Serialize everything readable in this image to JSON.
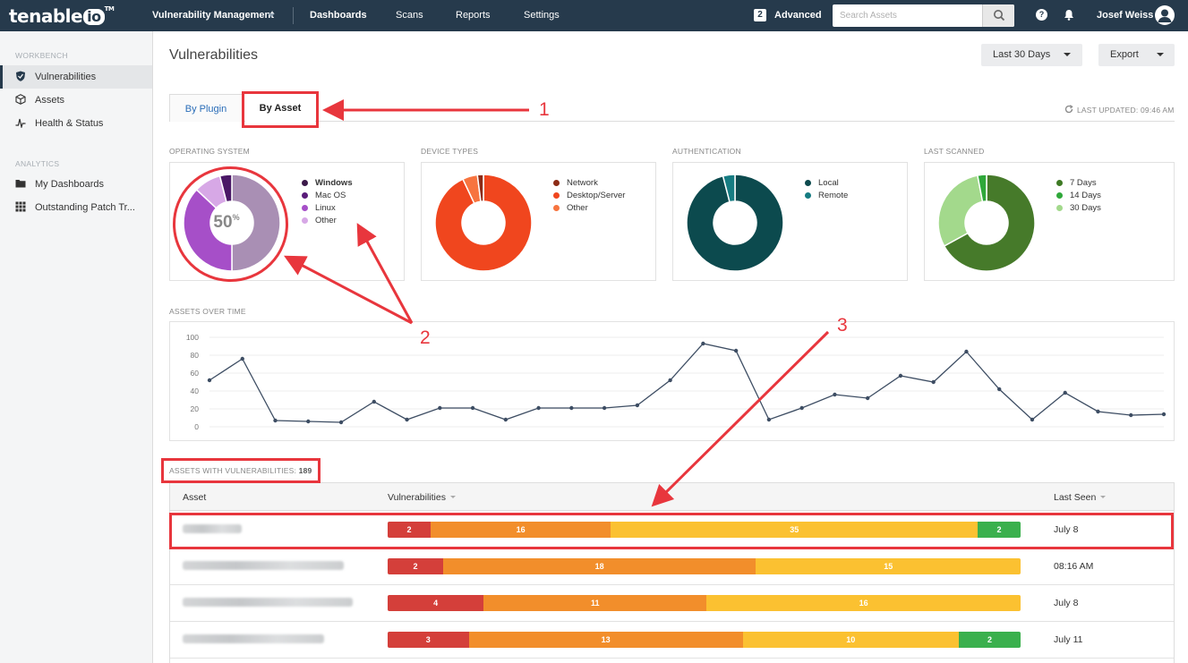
{
  "topbar": {
    "brand": "tenable",
    "brand_io": "io",
    "brand_tm": "TM",
    "app_switcher": "Vulnerability Management",
    "nav": [
      "Dashboards",
      "Scans",
      "Reports",
      "Settings"
    ],
    "advanced_count": "2",
    "advanced_label": "Advanced",
    "search_placeholder": "Search Assets",
    "help_glyph": "?",
    "user_name": "Josef Weiss"
  },
  "sidebar": {
    "workbench_heading": "WORKBENCH",
    "workbench_items": [
      {
        "label": "Vulnerabilities",
        "icon": "shield-icon",
        "active": true
      },
      {
        "label": "Assets",
        "icon": "cube-icon"
      },
      {
        "label": "Health & Status",
        "icon": "pulse-icon"
      }
    ],
    "analytics_heading": "ANALYTICS",
    "analytics_items": [
      {
        "label": "My Dashboards",
        "icon": "folder-icon"
      },
      {
        "label": "Outstanding Patch Tr...",
        "icon": "grid-icon"
      }
    ]
  },
  "page": {
    "title": "Vulnerabilities",
    "range_button": "Last 30 Days",
    "export_button": "Export",
    "tabs": [
      "By Plugin",
      "By Asset"
    ],
    "active_tab": "By Asset",
    "last_updated": "LAST UPDATED: 09:46 AM"
  },
  "widgets": [
    {
      "title": "OPERATING SYSTEM",
      "center_value": "50",
      "center_unit": "%",
      "legend": [
        {
          "label": "Windows",
          "color": "#3c1a4a",
          "bold": true
        },
        {
          "label": "Mac OS",
          "color": "#5a1c7a"
        },
        {
          "label": "Linux",
          "color": "#a64fc8"
        },
        {
          "label": "Other",
          "color": "#d7a8e6"
        }
      ],
      "slices": [
        {
          "label": "Other",
          "value": 50,
          "color": "#a98fb4"
        },
        {
          "label": "Linux",
          "value": 37,
          "color": "#a64fc8"
        },
        {
          "label": "Other",
          "value": 9,
          "color": "#d7a8e6"
        },
        {
          "label": "Windows",
          "value": 4,
          "color": "#4a1766"
        }
      ]
    },
    {
      "title": "DEVICE TYPES",
      "legend": [
        {
          "label": "Network",
          "color": "#8c2b16"
        },
        {
          "label": "Desktop/Server",
          "color": "#f0461e"
        },
        {
          "label": "Other",
          "color": "#f7743f"
        }
      ],
      "slices": [
        {
          "label": "Desktop/Server",
          "value": 93,
          "color": "#f0461e"
        },
        {
          "label": "Other",
          "value": 5,
          "color": "#f7743f"
        },
        {
          "label": "Network",
          "value": 2,
          "color": "#8c2b16"
        }
      ]
    },
    {
      "title": "AUTHENTICATION",
      "legend": [
        {
          "label": "Local",
          "color": "#0c4a4e"
        },
        {
          "label": "Remote",
          "color": "#167c82"
        }
      ],
      "slices": [
        {
          "label": "Local",
          "value": 96,
          "color": "#0c4a4e"
        },
        {
          "label": "Remote",
          "value": 4,
          "color": "#167c82"
        }
      ]
    },
    {
      "title": "LAST SCANNED",
      "legend": [
        {
          "label": "7 Days",
          "color": "#3e7a24"
        },
        {
          "label": "14 Days",
          "color": "#2fa83a"
        },
        {
          "label": "30 Days",
          "color": "#a3d98c"
        }
      ],
      "slices": [
        {
          "label": "7 Days",
          "value": 67,
          "color": "#467a2a"
        },
        {
          "label": "30 Days",
          "value": 30,
          "color": "#a3d98c"
        },
        {
          "label": "14 Days",
          "value": 3,
          "color": "#2fa83a"
        }
      ]
    }
  ],
  "assets_over_time": {
    "title": "ASSETS OVER TIME"
  },
  "chart_data": {
    "type": "line",
    "title": "ASSETS OVER TIME",
    "xlabel": "",
    "ylabel": "",
    "ylim": [
      0,
      100
    ],
    "yticks": [
      100,
      80,
      60,
      40,
      20,
      0
    ],
    "grid": true,
    "series": [
      {
        "values": [
          52,
          76,
          7,
          6,
          5,
          28,
          8,
          21,
          21,
          8,
          21,
          21,
          21,
          24,
          52,
          93,
          85,
          8,
          21,
          36,
          32,
          57,
          50,
          84,
          42,
          8,
          38,
          17,
          13,
          14
        ]
      }
    ]
  },
  "assets_table": {
    "title_prefix": "ASSETS WITH VULNERABILITIES:",
    "count": "189",
    "headers": {
      "asset": "Asset",
      "vulns": "Vulnerabilities",
      "last_seen": "Last Seen"
    },
    "rows": [
      {
        "blur_w": 66,
        "segments": [
          {
            "sev": "crit",
            "n": 2
          },
          {
            "sev": "high",
            "n": 16
          },
          {
            "sev": "med",
            "n": 35
          },
          {
            "sev": "low",
            "n": 2
          }
        ],
        "last_seen": "July 8"
      },
      {
        "blur_w": 180,
        "segments": [
          {
            "sev": "crit",
            "n": 2
          },
          {
            "sev": "high",
            "n": 18
          },
          {
            "sev": "med",
            "n": 15
          }
        ],
        "last_seen": "08:16 AM"
      },
      {
        "blur_w": 190,
        "segments": [
          {
            "sev": "crit",
            "n": 4
          },
          {
            "sev": "high",
            "n": 11
          },
          {
            "sev": "med",
            "n": 16
          }
        ],
        "last_seen": "July 8"
      },
      {
        "blur_w": 158,
        "segments": [
          {
            "sev": "crit",
            "n": 3
          },
          {
            "sev": "high",
            "n": 13
          },
          {
            "sev": "med",
            "n": 10
          },
          {
            "sev": "low",
            "n": 2
          }
        ],
        "last_seen": "July 11"
      }
    ]
  },
  "annotations": [
    "1",
    "2",
    "3"
  ]
}
